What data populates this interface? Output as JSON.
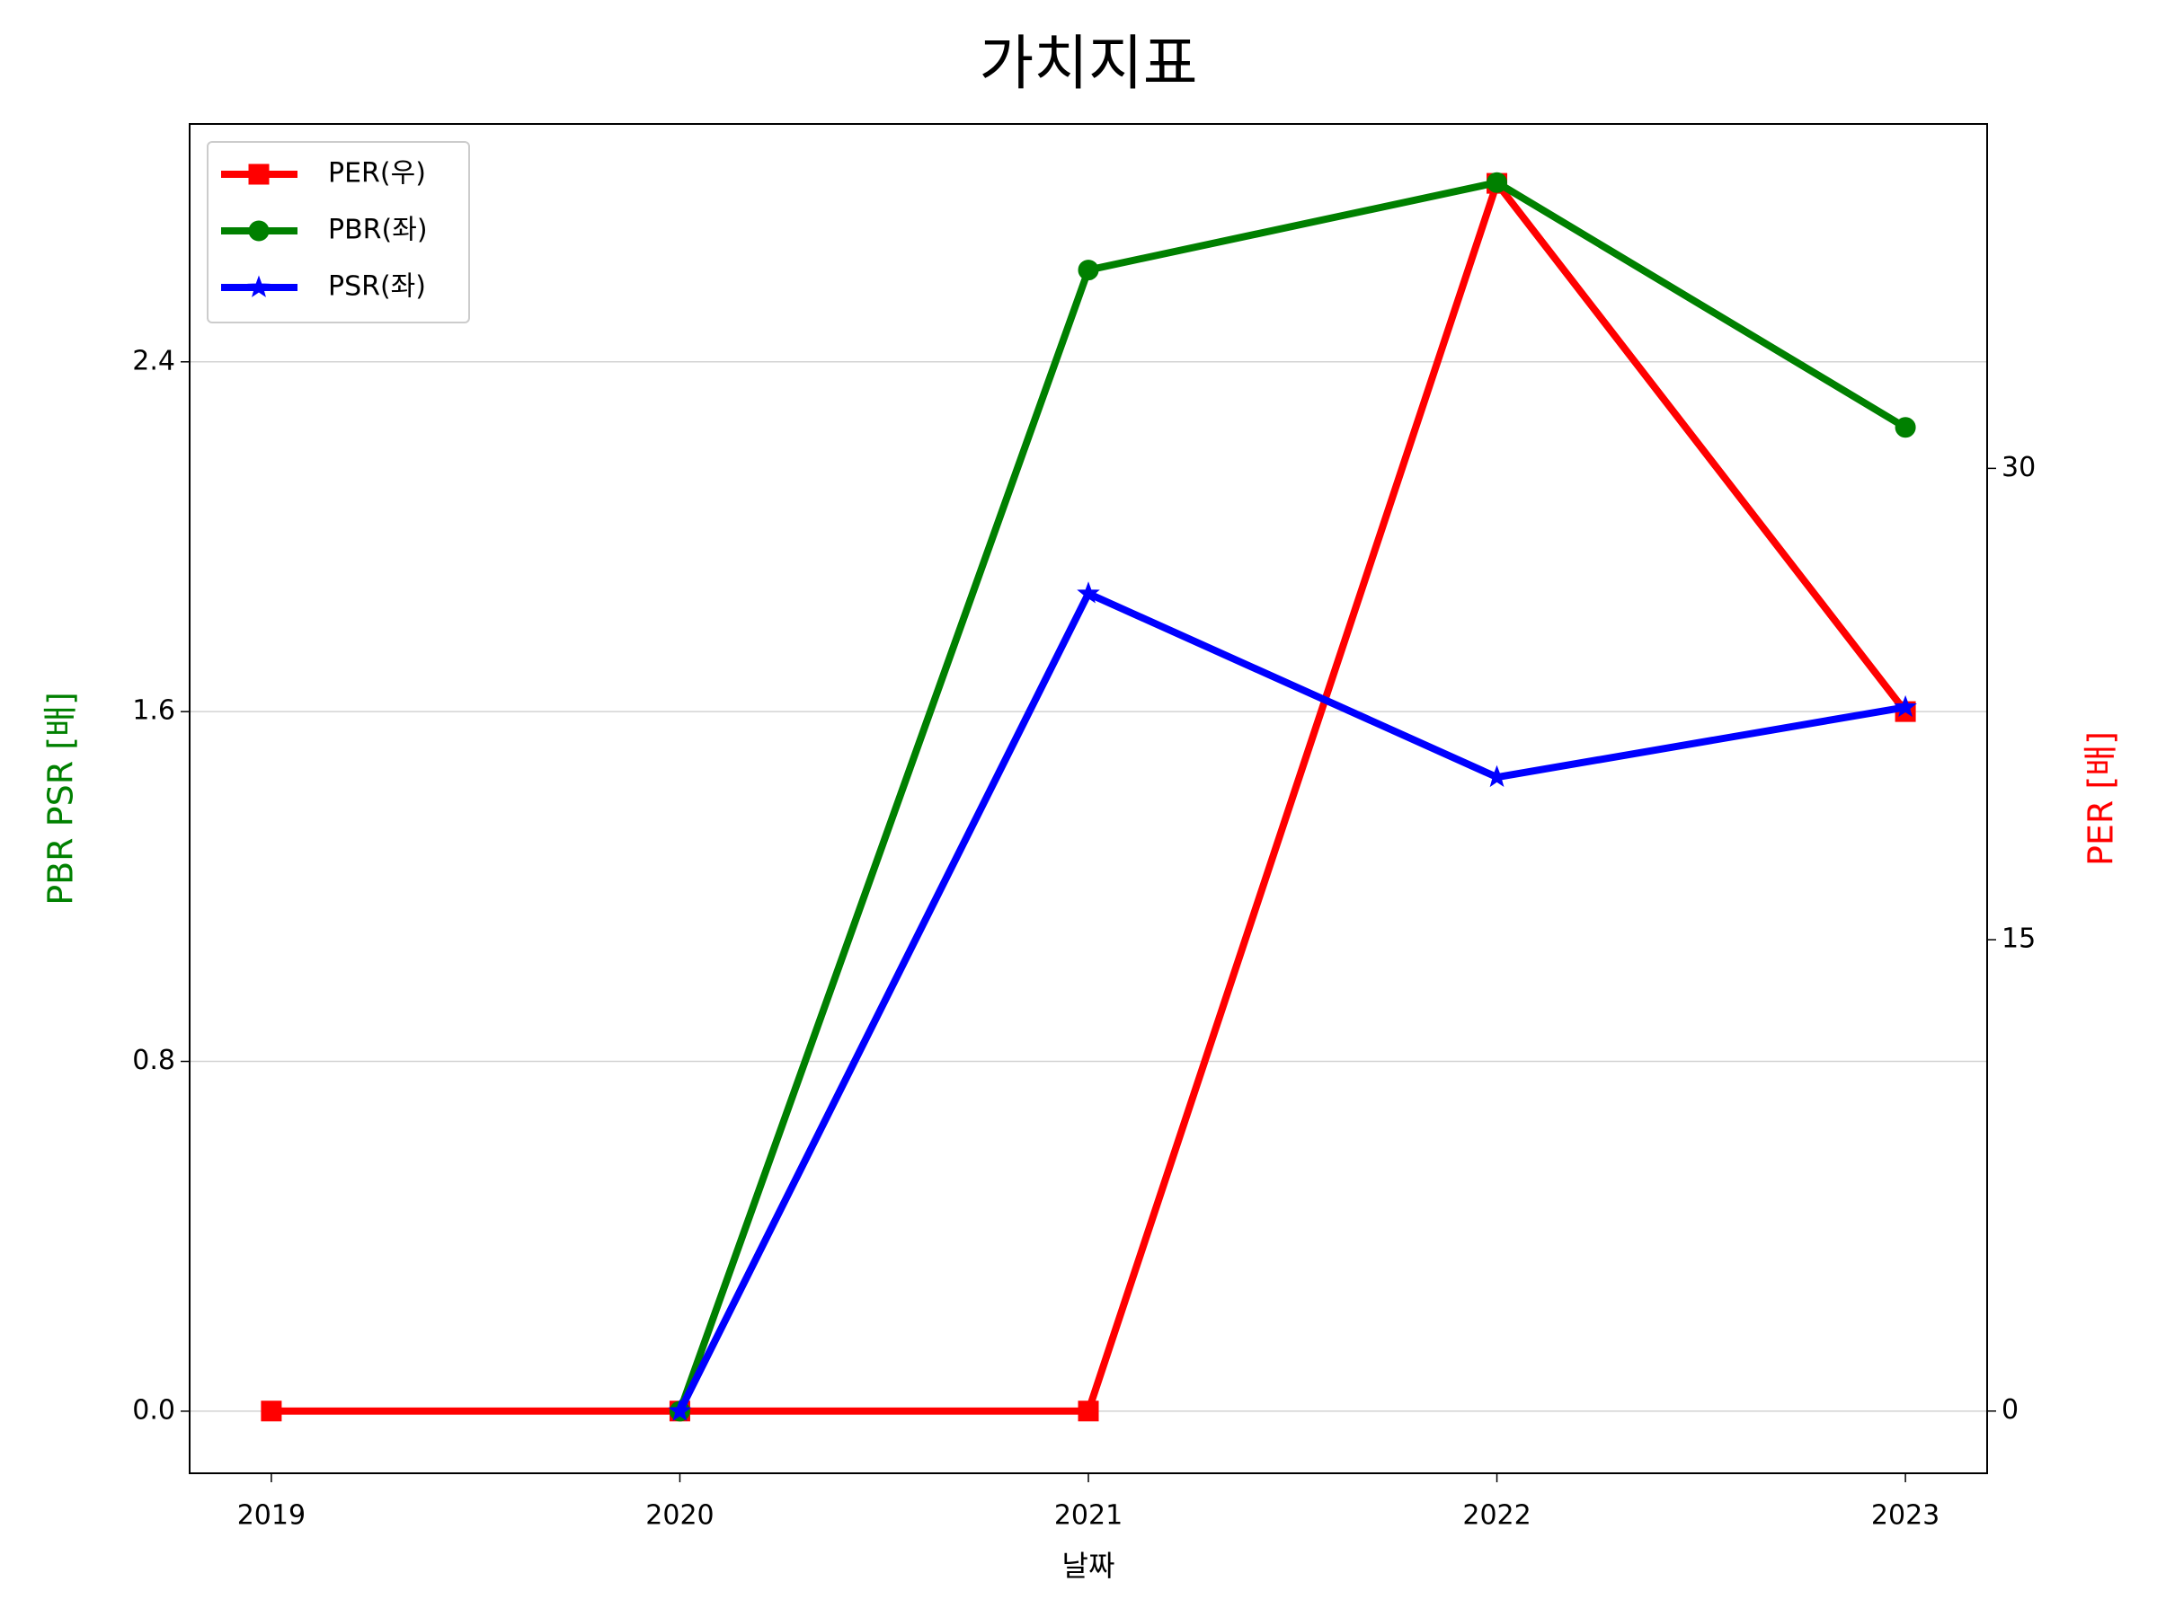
{
  "chart_data": {
    "type": "line",
    "title": "가치지표",
    "xlabel": "날짜",
    "ylabel": "PBR PSR [배]",
    "y2label": "PER [배]",
    "x": [
      2019,
      2020,
      2021,
      2022,
      2023
    ],
    "xlim": [
      2018.8,
      2023.2
    ],
    "xticks": [
      2019,
      2020,
      2021,
      2022,
      2023
    ],
    "ylim": [
      -0.142,
      2.944
    ],
    "yticks": [
      {
        "value": 0,
        "label": "0.0"
      },
      0.8,
      1.6,
      2.4
    ],
    "y2lim": [
      -1.98,
      40.96
    ],
    "y2ticks": [
      0,
      15,
      30
    ],
    "grid": true,
    "legend": "upper left",
    "series": [
      {
        "name": "PER(우)",
        "color": "#ff0000",
        "marker": "square",
        "axis": "y2",
        "values": [
          0,
          0,
          0,
          39.07,
          22.26
        ]
      },
      {
        "name": "PBR(좌)",
        "color": "#008000",
        "marker": "circle",
        "values": [
          null,
          0,
          2.61,
          2.81,
          2.25
        ]
      },
      {
        "name": "PSR(좌)",
        "color": "#0000ff",
        "marker": "star",
        "values": [
          null,
          0,
          1.87,
          1.45,
          1.61
        ]
      }
    ]
  }
}
